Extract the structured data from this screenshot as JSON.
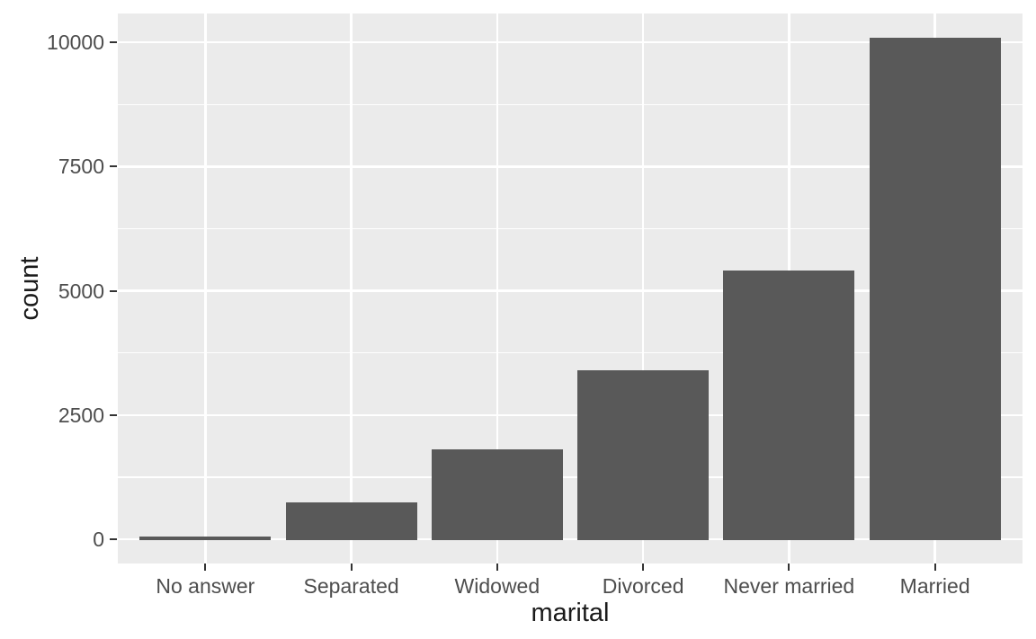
{
  "chart_data": {
    "type": "bar",
    "title": "",
    "xlabel": "marital",
    "ylabel": "count",
    "categories": [
      "No answer",
      "Separated",
      "Widowed",
      "Divorced",
      "Never married",
      "Married"
    ],
    "values": [
      50,
      750,
      1800,
      3400,
      5400,
      10100
    ],
    "y_ticks": [
      0,
      2500,
      5000,
      7500,
      10000
    ],
    "y_minor_ticks": [
      1250,
      3750,
      6250,
      8750
    ],
    "ylim": [
      0,
      10620
    ],
    "grid": true,
    "legend": false,
    "orientation": "vertical",
    "style": "ggplot2-theme-grey",
    "colors": {
      "bar_fill": "#595959",
      "panel_background": "#EBEBEB",
      "gridline": "#FFFFFF",
      "tick_label": "#4D4D4D",
      "axis_title": "#1A1A1A",
      "tick_mark": "#333333",
      "figure_background": "#FFFFFF"
    }
  }
}
